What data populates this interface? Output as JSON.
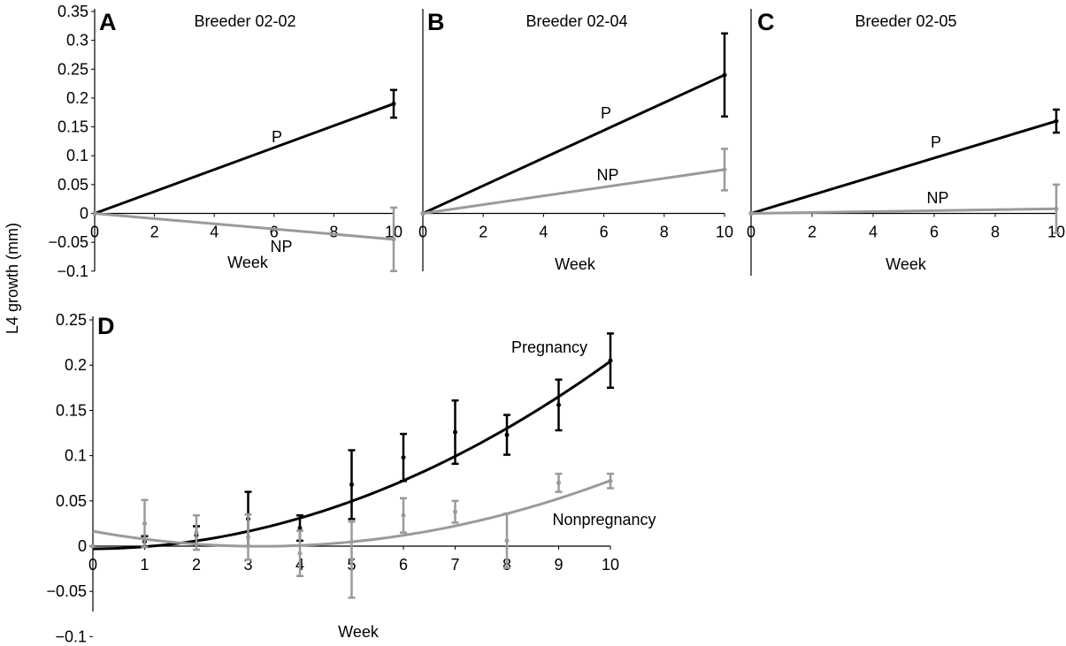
{
  "figure": {
    "ylabel": "L4 growth (mm)",
    "colors": {
      "pregnant": "#000000",
      "nonpregnant": "#9a9a9a"
    }
  },
  "chart_data": [
    {
      "id": "A",
      "type": "line",
      "letter": "A",
      "title": "Breeder 02-02",
      "xlabel": "Week",
      "xlim": [
        0,
        10
      ],
      "ylim": [
        -0.1,
        0.35
      ],
      "xticks": [
        "0",
        "2",
        "4",
        "6",
        "8",
        "10"
      ],
      "yticks": [
        "-0.1",
        "-0.05",
        "0",
        "0.05",
        "0.1",
        "0.15",
        "0.2",
        "0.25",
        "0.3",
        "0.35"
      ],
      "series": [
        {
          "name": "P",
          "color": "#000000",
          "x": [
            0,
            10
          ],
          "y": [
            0,
            0.19
          ],
          "errors": [
            0,
            0.024
          ]
        },
        {
          "name": "NP",
          "color": "#9a9a9a",
          "x": [
            0,
            10
          ],
          "y": [
            0,
            -0.045
          ],
          "errors": [
            0,
            0.055
          ]
        }
      ]
    },
    {
      "id": "B",
      "type": "line",
      "letter": "B",
      "title": "Breeder 02-04",
      "xlabel": "Week",
      "xlim": [
        0,
        10
      ],
      "ylim": [
        -0.1,
        0.35
      ],
      "xticks": [
        "0",
        "2",
        "4",
        "6",
        "8",
        "10"
      ],
      "series": [
        {
          "name": "P",
          "color": "#000000",
          "x": [
            0,
            10
          ],
          "y": [
            0,
            0.24
          ],
          "errors": [
            0,
            0.072
          ]
        },
        {
          "name": "NP",
          "color": "#9a9a9a",
          "x": [
            0,
            10
          ],
          "y": [
            0,
            0.076
          ],
          "errors": [
            0,
            0.036
          ]
        }
      ]
    },
    {
      "id": "C",
      "type": "line",
      "letter": "C",
      "title": "Breeder 02-05",
      "xlabel": "Week",
      "xlim": [
        0,
        10
      ],
      "ylim": [
        -0.1,
        0.35
      ],
      "xticks": [
        "0",
        "2",
        "4",
        "6",
        "8",
        "10"
      ],
      "series": [
        {
          "name": "P",
          "color": "#000000",
          "x": [
            0,
            10
          ],
          "y": [
            0,
            0.16
          ],
          "errors": [
            0,
            0.02
          ]
        },
        {
          "name": "NP",
          "color": "#9a9a9a",
          "x": [
            0,
            10
          ],
          "y": [
            0,
            0.008
          ],
          "errors": [
            0,
            0.042
          ]
        }
      ]
    },
    {
      "id": "D",
      "type": "scatter",
      "letter": "D",
      "xlabel": "Week",
      "xlim": [
        0,
        10
      ],
      "ylim": [
        -0.1,
        0.25
      ],
      "xticks": [
        "0",
        "1",
        "2",
        "3",
        "4",
        "5",
        "6",
        "7",
        "8",
        "9",
        "10"
      ],
      "yticks": [
        "-0.1",
        "-0.05",
        "0",
        "0.05",
        "0.1",
        "0.15",
        "0.2",
        "0.25"
      ],
      "series": [
        {
          "name": "Pregnancy",
          "color": "#000000",
          "x": [
            0,
            1,
            2,
            3,
            4,
            5,
            6,
            7,
            8,
            9,
            10
          ],
          "y": [
            0,
            0.005,
            0.012,
            0.03,
            0.02,
            0.068,
            0.098,
            0.126,
            0.123,
            0.156,
            0.205
          ],
          "errors": [
            0,
            0.006,
            0.01,
            0.03,
            0.014,
            0.038,
            0.026,
            0.035,
            0.022,
            0.028,
            0.03
          ],
          "trend": [
            -0.003,
            0.00033,
            0.00204
          ]
        },
        {
          "name": "Nonpregnancy",
          "color": "#9a9a9a",
          "x": [
            0,
            1,
            2,
            3,
            4,
            5,
            6,
            7,
            8,
            9,
            10
          ],
          "y": [
            0,
            0.025,
            0.015,
            0.01,
            -0.008,
            -0.015,
            0.034,
            0.038,
            0.006,
            0.07,
            0.072
          ],
          "errors": [
            0,
            0.026,
            0.019,
            0.025,
            0.025,
            0.042,
            0.019,
            0.012,
            0.03,
            0.01,
            0.008
          ],
          "trend": [
            0.0165,
            -0.0103,
            0.00159
          ]
        }
      ]
    }
  ]
}
